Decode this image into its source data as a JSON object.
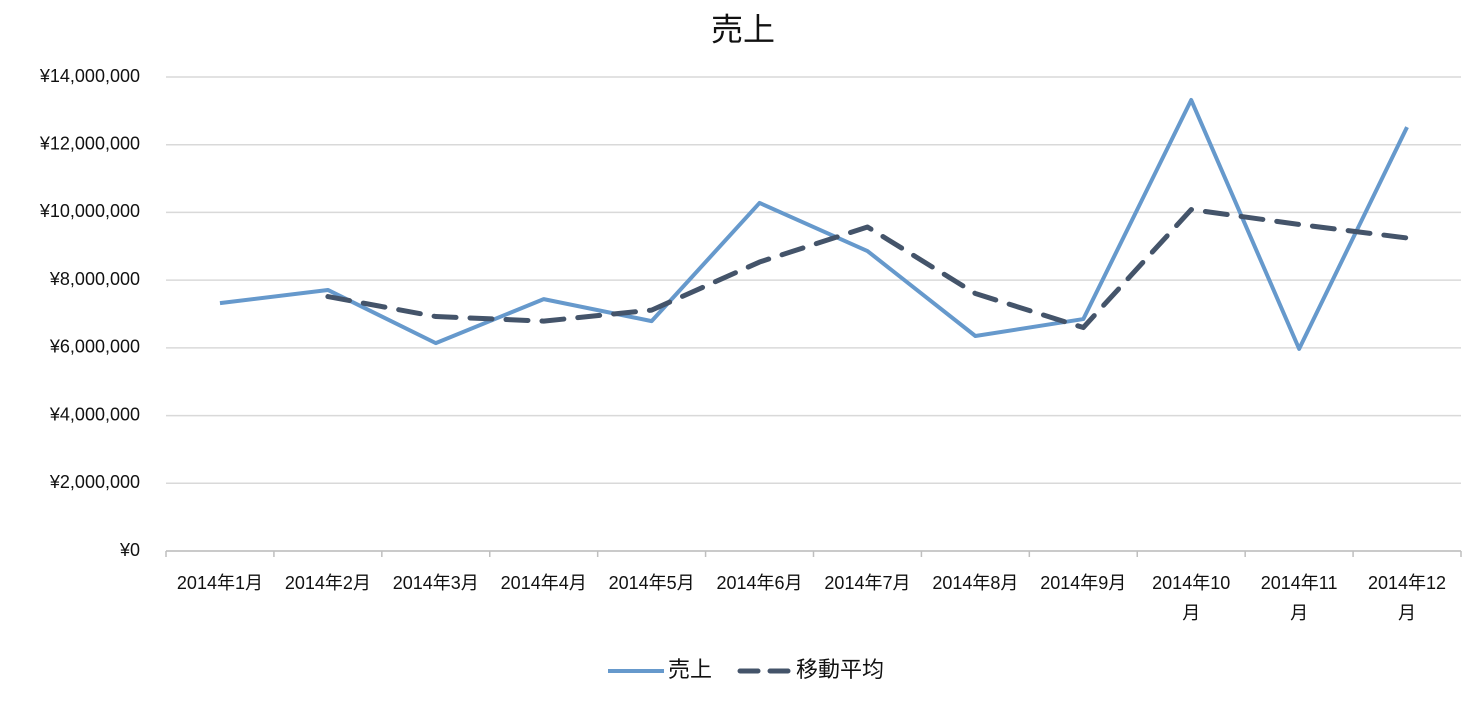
{
  "chart_data": {
    "type": "line",
    "title": "売上",
    "categories": [
      "2014年1月",
      "2014年2月",
      "2014年3月",
      "2014年4月",
      "2014年5月",
      "2014年6月",
      "2014年7月",
      "2014年8月",
      "2014年9月",
      "2014年10月",
      "2014年11月",
      "2014年12月"
    ],
    "series": [
      {
        "name": "売上",
        "color": "#6699cc",
        "dash": false,
        "values": [
          7320000,
          7710000,
          6140000,
          7440000,
          6790000,
          10280000,
          8860000,
          6350000,
          6850000,
          13320000,
          5970000,
          12520000
        ]
      },
      {
        "name": "移動平均",
        "color": "#44546a",
        "dash": true,
        "values": [
          null,
          7515000,
          6925000,
          6790000,
          7115000,
          8535000,
          9570000,
          7605000,
          6600000,
          10085000,
          9645000,
          9245000
        ]
      }
    ],
    "ylim": [
      0,
      14000000
    ],
    "yticks": [
      {
        "value": 0,
        "label": "¥0"
      },
      {
        "value": 2000000,
        "label": "¥2,000,000"
      },
      {
        "value": 4000000,
        "label": "¥4,000,000"
      },
      {
        "value": 6000000,
        "label": "¥6,000,000"
      },
      {
        "value": 8000000,
        "label": "¥8,000,000"
      },
      {
        "value": 10000000,
        "label": "¥10,000,000"
      },
      {
        "value": 12000000,
        "label": "¥12,000,000"
      },
      {
        "value": 14000000,
        "label": "¥14,000,000"
      }
    ],
    "grid": true,
    "legend": "bottom"
  }
}
